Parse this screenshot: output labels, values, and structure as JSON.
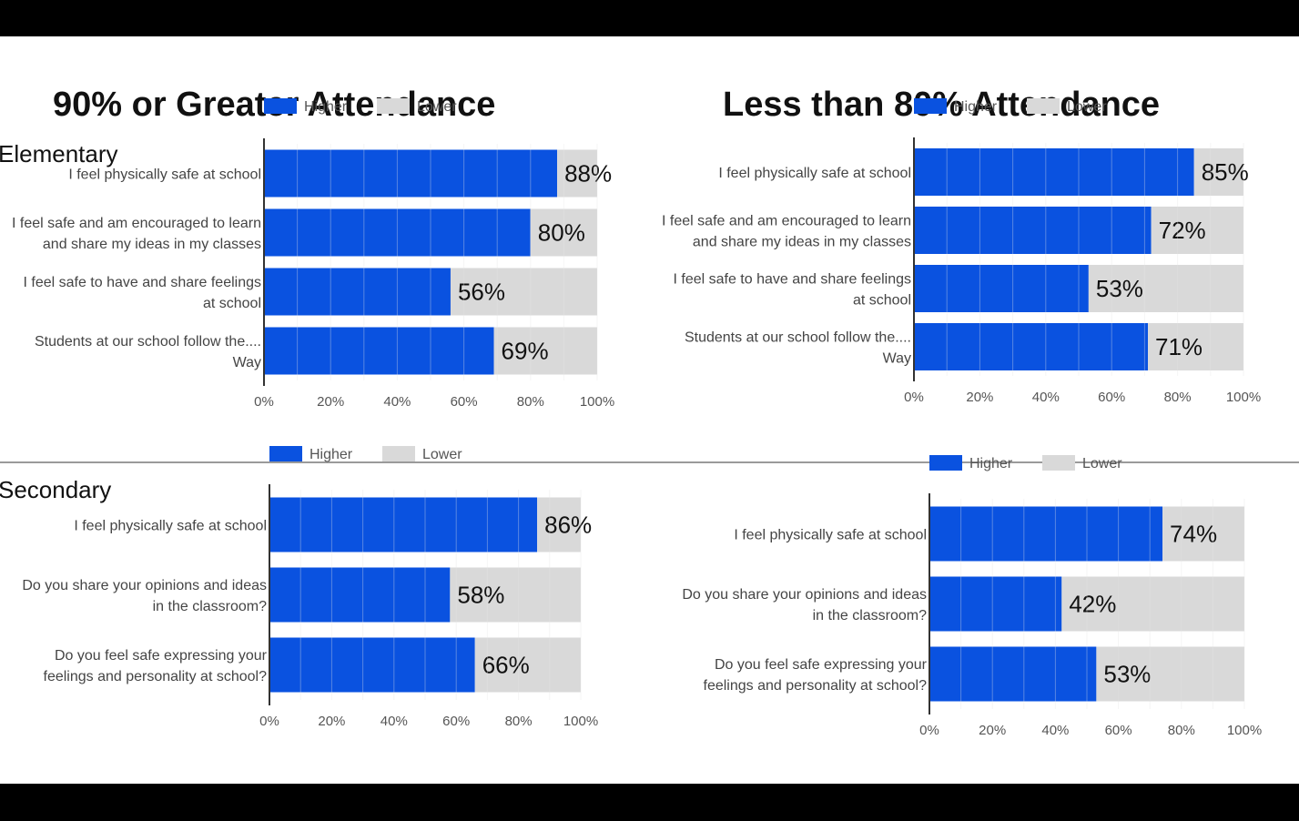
{
  "titles": {
    "left": "90% or Greater Attendance",
    "right": "Less than 80% Attendance"
  },
  "sections": {
    "elementary": "Elementary",
    "secondary": "Secondary"
  },
  "colors": {
    "higher": "#0a52e0",
    "lower": "#d9d9d9",
    "grid": "#ffffff"
  },
  "chart_data": [
    {
      "id": "elem-high",
      "type": "bar",
      "stacked": true,
      "orientation": "horizontal",
      "title": "90% or Greater Attendance — Elementary",
      "legend": [
        "Higher",
        "Lower"
      ],
      "legend_position": "top",
      "categories": [
        [
          "I feel physically safe at school"
        ],
        [
          "I feel safe and am encouraged to learn",
          "and share my ideas in my classes"
        ],
        [
          "I feel safe to have and share feelings",
          "at school"
        ],
        [
          "Students at our school follow the....",
          "Way"
        ]
      ],
      "series": [
        {
          "name": "Higher",
          "values": [
            88,
            80,
            56,
            69
          ]
        },
        {
          "name": "Lower",
          "values": [
            12,
            20,
            44,
            31
          ]
        }
      ],
      "labels": [
        "88%",
        "80%",
        "56%",
        "69%"
      ],
      "xticks": [
        "0%",
        "20%",
        "40%",
        "60%",
        "80%",
        "100%"
      ],
      "xlim": [
        0,
        100
      ]
    },
    {
      "id": "elem-low",
      "type": "bar",
      "stacked": true,
      "orientation": "horizontal",
      "title": "Less than 80% Attendance — Elementary",
      "legend": [
        "Higher",
        "Lower"
      ],
      "legend_position": "top",
      "categories": [
        [
          "I feel physically safe at school"
        ],
        [
          "I feel safe and am encouraged to learn",
          "and share my ideas in my classes"
        ],
        [
          "I feel safe to have and share feelings",
          "at school"
        ],
        [
          "Students at our school follow the....",
          "Way"
        ]
      ],
      "series": [
        {
          "name": "Higher",
          "values": [
            85,
            72,
            53,
            71
          ]
        },
        {
          "name": "Lower",
          "values": [
            15,
            28,
            47,
            29
          ]
        }
      ],
      "labels": [
        "85%",
        "72%",
        "53%",
        "71%"
      ],
      "xticks": [
        "0%",
        "20%",
        "40%",
        "60%",
        "80%",
        "100%"
      ],
      "xlim": [
        0,
        100
      ]
    },
    {
      "id": "sec-high",
      "type": "bar",
      "stacked": true,
      "orientation": "horizontal",
      "title": "90% or Greater Attendance — Secondary",
      "legend": [
        "Higher",
        "Lower"
      ],
      "legend_position": "top",
      "categories": [
        [
          "I feel physically safe at school"
        ],
        [
          "Do you share your opinions and ideas",
          "in the classroom?"
        ],
        [
          "Do you feel safe expressing your",
          "feelings and personality at school?"
        ]
      ],
      "series": [
        {
          "name": "Higher",
          "values": [
            86,
            58,
            66
          ]
        },
        {
          "name": "Lower",
          "values": [
            14,
            42,
            34
          ]
        }
      ],
      "labels": [
        "86%",
        "58%",
        "66%"
      ],
      "xticks": [
        "0%",
        "20%",
        "40%",
        "60%",
        "80%",
        "100%"
      ],
      "xlim": [
        0,
        100
      ]
    },
    {
      "id": "sec-low",
      "type": "bar",
      "stacked": true,
      "orientation": "horizontal",
      "title": "Less than 80% Attendance — Secondary",
      "legend": [
        "Higher",
        "Lower"
      ],
      "legend_position": "top",
      "categories": [
        [
          "I feel physically safe at school"
        ],
        [
          "Do you share your opinions and ideas",
          "in the classroom?"
        ],
        [
          "Do you feel safe expressing your",
          "feelings and personality at school?"
        ]
      ],
      "series": [
        {
          "name": "Higher",
          "values": [
            74,
            42,
            53
          ]
        },
        {
          "name": "Lower",
          "values": [
            26,
            58,
            47
          ]
        }
      ],
      "labels": [
        "74%",
        "42%",
        "53%"
      ],
      "xticks": [
        "0%",
        "20%",
        "40%",
        "60%",
        "80%",
        "100%"
      ],
      "xlim": [
        0,
        100
      ]
    }
  ]
}
